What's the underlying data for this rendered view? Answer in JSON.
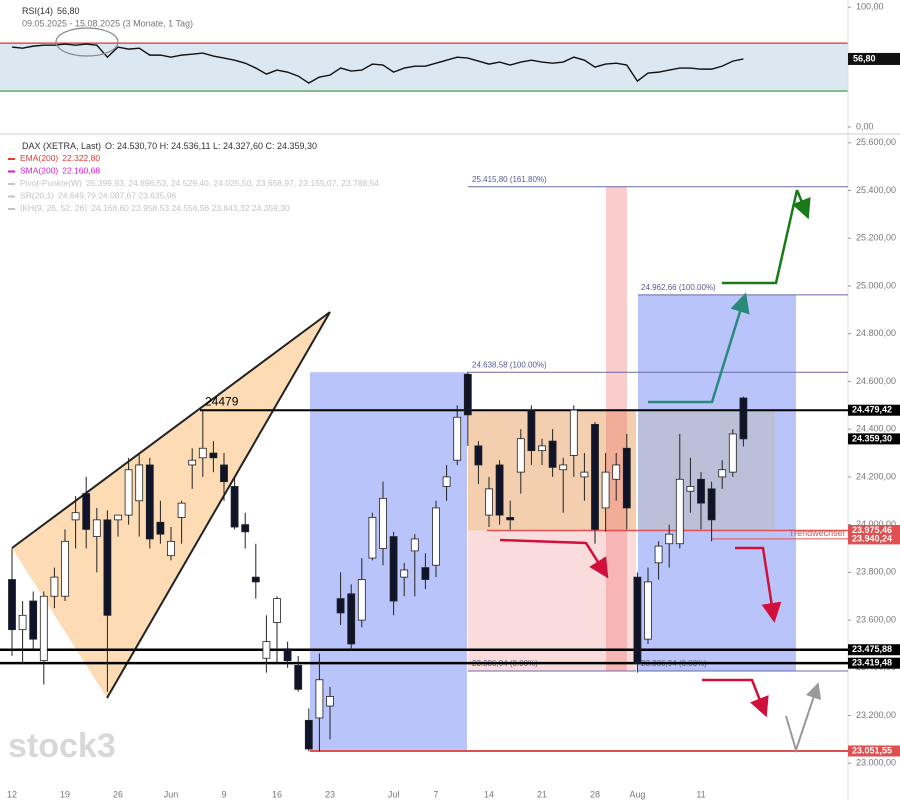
{
  "chart_data": [
    {
      "type": "line",
      "title": "RSI(14)",
      "title_value": "56,80",
      "subtitle": "09.05.2025 - 15.08.2025 (3 Monate, 1 Tag)",
      "color": "#111111",
      "values": [
        66.7,
        65.8,
        67.5,
        68.3,
        68.3,
        69.2,
        68.3,
        69.2,
        68.3,
        58.3,
        66.7,
        65,
        65.8,
        60,
        60,
        58.3,
        60,
        60.8,
        61.7,
        59.2,
        57.5,
        55.8,
        53.3,
        49.2,
        44.2,
        47.5,
        45.8,
        42.5,
        36.7,
        41.7,
        43.3,
        49.2,
        46.7,
        47.5,
        52.5,
        51.7,
        45.8,
        49.2,
        50.8,
        50.8,
        53.3,
        55.8,
        58.3,
        57.5,
        55,
        52.5,
        54.2,
        51.7,
        54.2,
        55.8,
        54.2,
        53.3,
        54.2,
        58.3,
        55.8,
        50,
        52.5,
        53.3,
        51.7,
        38.3,
        45,
        45.8,
        47.5,
        49.2,
        49.2,
        48.3,
        48.3,
        50.8,
        55,
        56.8
      ],
      "last_label": {
        "value": 56.8,
        "label": "56,80"
      },
      "bands": [
        {
          "value": 70,
          "color": "#e03030"
        },
        {
          "value": 30,
          "color": "#2a9a2a"
        }
      ],
      "ylim": [
        -5,
        106
      ],
      "yticks": [
        {
          "value": 100,
          "label": "100,00"
        },
        {
          "value": 0,
          "label": "0,00"
        }
      ]
    },
    {
      "type": "candlestick",
      "title": "DAX (XETRA, Last)",
      "title_ohlc": "O: 24.530,70  H: 24.536,11  L: 24.327,60  C: 24.359,30",
      "categories": [
        "12",
        null,
        null,
        null,
        null,
        "19",
        null,
        null,
        null,
        null,
        "26",
        null,
        null,
        null,
        null,
        "Jun",
        null,
        null,
        null,
        null,
        "9",
        null,
        null,
        null,
        null,
        "16",
        null,
        null,
        null,
        null,
        "23",
        null,
        null,
        null,
        null,
        null,
        "Jul",
        null,
        null,
        null,
        "7",
        null,
        null,
        null,
        null,
        "14",
        null,
        null,
        null,
        null,
        "21",
        null,
        null,
        null,
        null,
        "28",
        null,
        null,
        null,
        "Aug",
        null,
        null,
        null,
        null,
        null,
        "11",
        null,
        null,
        null,
        null
      ],
      "open": [
        23770,
        23560,
        23680,
        23430,
        23700,
        23700,
        24020,
        24130,
        23950,
        24020,
        24020,
        24040,
        24100,
        24250,
        24010,
        23870,
        24030,
        24250,
        24280,
        24300,
        24250,
        24160,
        24000,
        23780,
        23440,
        23590,
        23480,
        23410,
        23180,
        23190,
        23240,
        23690,
        23710,
        23600,
        23860,
        23900,
        23950,
        23780,
        23890,
        23820,
        23830,
        24160,
        24270,
        24630,
        24330,
        24040,
        24250,
        24030,
        24220,
        24480,
        24310,
        24350,
        24230,
        24290,
        24200,
        24420,
        24070,
        24190,
        24320,
        23780,
        23520,
        23840,
        23920,
        23920,
        24140,
        24190,
        24150,
        24200,
        24220,
        24530.7
      ],
      "high": [
        23900,
        23680,
        23720,
        23720,
        23820,
        23980,
        24120,
        24200,
        24070,
        24060,
        24040,
        24280,
        24300,
        24280,
        24100,
        23990,
        24100,
        24320,
        24480,
        24350,
        24300,
        24200,
        24050,
        23920,
        23620,
        23700,
        23510,
        23450,
        23230,
        23460,
        23320,
        23800,
        23750,
        23860,
        24050,
        24180,
        23970,
        23840,
        23960,
        23880,
        24100,
        24250,
        24500,
        24640,
        24350,
        24200,
        24270,
        24100,
        24400,
        24500,
        24360,
        24400,
        24280,
        24500,
        24300,
        24430,
        24300,
        24300,
        24380,
        23800,
        23820,
        23930,
        24000,
        24380,
        24280,
        24220,
        24180,
        24270,
        24400,
        24536.11
      ],
      "low": [
        23450,
        23420,
        23480,
        23330,
        23650,
        23680,
        23900,
        23900,
        23800,
        23300,
        23950,
        24000,
        23950,
        23900,
        23920,
        23850,
        23920,
        24150,
        24200,
        24220,
        24100,
        23980,
        23900,
        23690,
        23380,
        23420,
        23400,
        23300,
        23050,
        23050,
        23100,
        23580,
        23470,
        23570,
        23850,
        23830,
        23620,
        23700,
        23700,
        23730,
        23780,
        24100,
        24250,
        24330,
        24170,
        23990,
        24000,
        23980,
        24130,
        24250,
        24250,
        24200,
        24050,
        24200,
        24100,
        23920,
        23970,
        24100,
        23980,
        23380,
        23500,
        23770,
        23820,
        23900,
        24050,
        23980,
        23930,
        24150,
        24200,
        24327.6
      ],
      "close": [
        23560,
        23620,
        23520,
        23700,
        23780,
        23930,
        24050,
        23980,
        24020,
        23620,
        24040,
        24230,
        24250,
        23940,
        23960,
        23930,
        24090,
        24270,
        24320,
        24280,
        24180,
        23990,
        23970,
        23760,
        23510,
        23690,
        23430,
        23310,
        23060,
        23350,
        23280,
        23630,
        23500,
        23770,
        24030,
        24110,
        23680,
        23810,
        23940,
        23770,
        24070,
        24200,
        24450,
        24460,
        24250,
        24150,
        24040,
        24020,
        24360,
        24310,
        24330,
        24240,
        24250,
        24480,
        24220,
        23980,
        24220,
        24250,
        24070,
        23420,
        23760,
        23910,
        23960,
        24190,
        24160,
        24090,
        24020,
        24230,
        24380,
        24359.3
      ],
      "up_color": "#ffffff",
      "down_color": "#10142a",
      "ylim": [
        22930,
        25620
      ],
      "yticks": [
        {
          "value": 25600,
          "label": "25.600,00"
        },
        {
          "value": 25400,
          "label": "25.400,00"
        },
        {
          "value": 25200,
          "label": "25.200,00"
        },
        {
          "value": 25000,
          "label": "25.000,00"
        },
        {
          "value": 24800,
          "label": "24.800,00"
        },
        {
          "value": 24600,
          "label": "24.600,00"
        },
        {
          "value": 24400,
          "label": "24.400,00"
        },
        {
          "value": 24200,
          "label": "24.200,00"
        },
        {
          "value": 24000,
          "label": "24.000,00"
        },
        {
          "value": 23800,
          "label": "23.800,00"
        },
        {
          "value": 23600,
          "label": "23.600,00"
        },
        {
          "value": 23400,
          "label": "23.400,00"
        },
        {
          "value": 23200,
          "label": "23.200,00"
        },
        {
          "value": 23000,
          "label": "23.000,00"
        }
      ],
      "grid": false,
      "indicators": [
        {
          "name": "EMA(200)",
          "value": "22.322,80",
          "color": "#e53935"
        },
        {
          "name": "SMA(200)",
          "value": "22.160,68",
          "color": "#d81bd8"
        },
        {
          "name": "Pivot-Punkte(W)",
          "value": "25.399,93, 24.896,53, 24.529,40, 24.025,50, 23.658,97, 23.155,07, 23.788,54",
          "color": "#c4c4c4"
        },
        {
          "name": "SR(20,1)",
          "value": "24.649,79  24.087,67  23.635,96",
          "color": "#c4c4c4"
        },
        {
          "name": "IKH(9, 26, 52, 26)",
          "value": "24.168,60  23.958,53  24.556,56  23.843,32  24.359,30",
          "color": "#c4c4c4"
        }
      ],
      "levels": [
        {
          "value": 24479.42,
          "label": "24.479,42",
          "color": "#000000"
        },
        {
          "value": 24359.3,
          "label": "24.359,30",
          "color": "#000000"
        },
        {
          "value": 23975.46,
          "label": "23.975,46",
          "color": "#e05050"
        },
        {
          "value": 23940.24,
          "label": "23.940,24",
          "color": "#e05050"
        },
        {
          "value": 23475.88,
          "label": "23.475,88",
          "color": "#000000"
        },
        {
          "value": 23419.48,
          "label": "23.419,48",
          "color": "#000000"
        },
        {
          "value": 23051.55,
          "label": "23.051,55",
          "color": "#e05050"
        }
      ],
      "fib_levels": [
        {
          "value": 25415.8,
          "label": "25.415,80 (161.80%)"
        },
        {
          "value": 24962.66,
          "label": "24.962,66 (100.00%)"
        },
        {
          "value": 24638.58,
          "label": "24.638,58 (100.00%)"
        },
        {
          "value": 23386.94,
          "label": "23.386,94 (0.00%)"
        },
        {
          "value": 23386.94,
          "label": "23.386,94 (0.00%)"
        }
      ],
      "annotations": [
        "24479",
        "Trendwechsel"
      ],
      "watermark": "stock3"
    }
  ]
}
